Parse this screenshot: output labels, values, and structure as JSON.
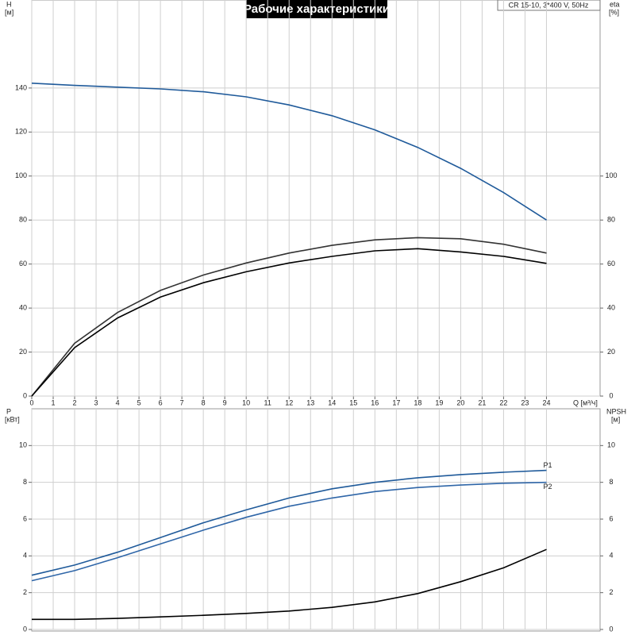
{
  "chart_data": [
    {
      "type": "line",
      "title": "Рабочие характеристики",
      "note": "CR 15-10, 3*400 V, 50Hz",
      "ylabel": [
        "H",
        "[м]"
      ],
      "y2label": [
        "eta",
        "[%]"
      ],
      "xlabel": "Q [м³/ч]",
      "x": [
        0,
        2,
        4,
        6,
        8,
        10,
        12,
        14,
        16,
        18,
        20,
        22,
        24
      ],
      "xlim": [
        0,
        26.5
      ],
      "xticks": [
        0,
        1,
        2,
        3,
        4,
        5,
        6,
        7,
        8,
        9,
        10,
        11,
        12,
        13,
        14,
        15,
        16,
        17,
        18,
        19,
        20,
        21,
        22,
        23,
        24
      ],
      "ylim": [
        0,
        180
      ],
      "yticks": [
        0,
        20,
        40,
        60,
        80,
        100,
        120,
        140
      ],
      "y2lim": [
        0,
        180
      ],
      "y2ticks": [
        0,
        20,
        40,
        60,
        80,
        100
      ],
      "grid": true,
      "series": [
        {
          "color": "#1f5a9a",
          "values": [
            142.2,
            141.2,
            140.4,
            139.6,
            138.3,
            136,
            132.3,
            127.4,
            121,
            113,
            103.5,
            92.5,
            80
          ]
        },
        {
          "color": "#333333",
          "axis": "y2",
          "values": [
            0,
            24,
            38,
            48,
            55,
            60.5,
            65,
            68.5,
            71,
            72,
            71.5,
            69,
            65
          ]
        },
        {
          "color": "#000000",
          "axis": "y2",
          "values": [
            0,
            22,
            35.5,
            45,
            51.5,
            56.5,
            60.5,
            63.5,
            66,
            67,
            65.5,
            63.5,
            60.3
          ]
        }
      ]
    },
    {
      "type": "line",
      "ylabel": [
        "P",
        "[кВт]"
      ],
      "y2label": [
        "NPSH",
        "[м]"
      ],
      "x": [
        0,
        2,
        4,
        6,
        8,
        10,
        12,
        14,
        16,
        18,
        20,
        22,
        24
      ],
      "xlim": [
        0,
        26.5
      ],
      "ylim": [
        0,
        12
      ],
      "yticks": [
        0,
        2,
        4,
        6,
        8,
        10
      ],
      "y2lim": [
        0,
        12
      ],
      "y2ticks": [
        0,
        2,
        4,
        6,
        8,
        10
      ],
      "grid": true,
      "series": [
        {
          "name": "P1",
          "color": "#1f5a9a",
          "values": [
            2.95,
            3.5,
            4.2,
            5.0,
            5.8,
            6.5,
            7.15,
            7.65,
            8.0,
            8.25,
            8.42,
            8.55,
            8.65
          ]
        },
        {
          "name": "P2",
          "color": "#2f66a8",
          "values": [
            2.65,
            3.2,
            3.9,
            4.65,
            5.4,
            6.1,
            6.7,
            7.15,
            7.5,
            7.72,
            7.85,
            7.95,
            8.0
          ]
        },
        {
          "color": "#000000",
          "axis": "y2",
          "values": [
            0.55,
            0.55,
            0.6,
            0.68,
            0.77,
            0.87,
            1.0,
            1.2,
            1.5,
            1.95,
            2.6,
            3.35,
            4.35
          ]
        }
      ]
    }
  ]
}
